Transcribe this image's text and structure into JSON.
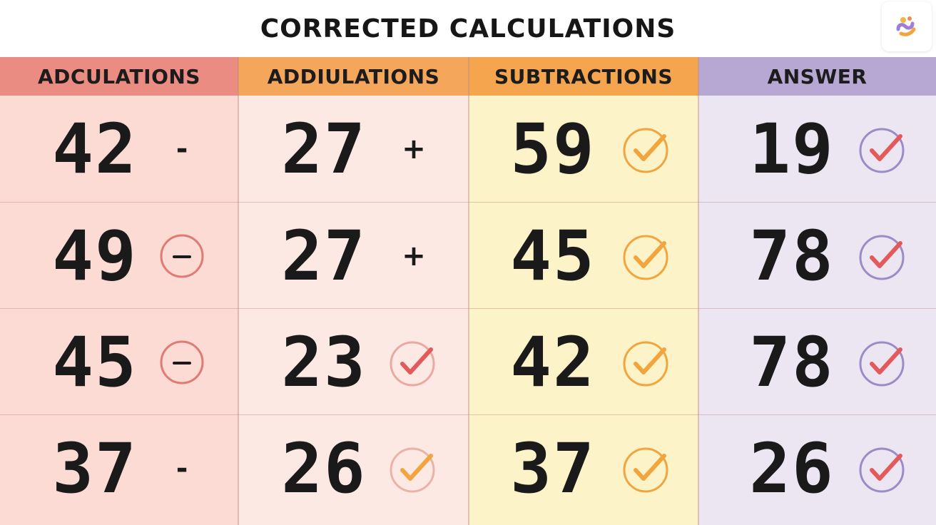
{
  "title": "CORRECTED CALCULATIONS",
  "logo_icon": "app-logo-icon",
  "colors": {
    "col1_head": "#eb8c82",
    "col1_body": "#fcdbd5",
    "col2_head": "#f4a65a",
    "col2_body": "#fde9e4",
    "col3_head": "#f4a54e",
    "col3_body": "#fdf3c8",
    "col4_head": "#b7a7d3",
    "col4_body": "#ece6f3",
    "minus_circle": "#e07a74",
    "check_red": "#e35a5a",
    "check_orange": "#f2a53f",
    "check_purple_ring": "#9c8cc6"
  },
  "columns": [
    {
      "header": "ADCULATIONS",
      "rows": [
        {
          "value": "42",
          "symbol": "-",
          "symbol_type": "text"
        },
        {
          "value": "49",
          "symbol": "minus-circle-icon",
          "symbol_type": "minus-circle"
        },
        {
          "value": "45",
          "symbol": "minus-circle-icon",
          "symbol_type": "minus-circle"
        },
        {
          "value": "37",
          "symbol": "-",
          "symbol_type": "text"
        }
      ]
    },
    {
      "header": "ADDIULATIONS",
      "rows": [
        {
          "value": "27",
          "symbol": "+",
          "symbol_type": "text"
        },
        {
          "value": "27",
          "symbol": "+",
          "symbol_type": "text"
        },
        {
          "value": "23",
          "symbol": "check-circle-icon",
          "symbol_type": "check-pink"
        },
        {
          "value": "26",
          "symbol": "check-circle-icon",
          "symbol_type": "check-pink-orange"
        }
      ]
    },
    {
      "header": "SUBTRACTIONS",
      "rows": [
        {
          "value": "59",
          "symbol": "check-circle-icon",
          "symbol_type": "check-orange"
        },
        {
          "value": "45",
          "symbol": "check-circle-icon",
          "symbol_type": "check-orange"
        },
        {
          "value": "42",
          "symbol": "check-circle-icon",
          "symbol_type": "check-orange"
        },
        {
          "value": "37",
          "symbol": "check-circle-icon",
          "symbol_type": "check-orange"
        }
      ]
    },
    {
      "header": "ANSWER",
      "rows": [
        {
          "value": "19",
          "symbol": "check-circle-icon",
          "symbol_type": "check-purple"
        },
        {
          "value": "78",
          "symbol": "check-circle-icon",
          "symbol_type": "check-purple"
        },
        {
          "value": "78",
          "symbol": "check-circle-icon",
          "symbol_type": "check-purple"
        },
        {
          "value": "26",
          "symbol": "check-circle-icon",
          "symbol_type": "check-purple"
        }
      ]
    }
  ]
}
